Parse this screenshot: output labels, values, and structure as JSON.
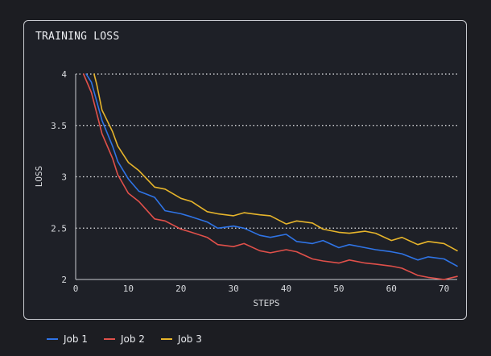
{
  "chart_data": {
    "type": "line",
    "title": "TRAINING LOSS",
    "xlabel": "STEPS",
    "ylabel": "LOSS",
    "xlim": [
      0,
      72.5
    ],
    "ylim": [
      2,
      4
    ],
    "x_ticks": [
      "0",
      "10",
      "20",
      "30",
      "40",
      "50",
      "60",
      "70"
    ],
    "y_ticks": [
      "2",
      "2.5",
      "3",
      "3.5",
      "4"
    ],
    "grid": "horizontal dotted",
    "legend_position": "bottom-left",
    "series": [
      {
        "name": "Job 1",
        "color": "#2f74e6",
        "points": [
          [
            2,
            4.0
          ],
          [
            3,
            3.92
          ],
          [
            5,
            3.55
          ],
          [
            7,
            3.3
          ],
          [
            8,
            3.15
          ],
          [
            10,
            2.98
          ],
          [
            12,
            2.86
          ],
          [
            15,
            2.8
          ],
          [
            17,
            2.67
          ],
          [
            20,
            2.64
          ],
          [
            22,
            2.61
          ],
          [
            25,
            2.56
          ],
          [
            27,
            2.5
          ],
          [
            30,
            2.52
          ],
          [
            32,
            2.5
          ],
          [
            35,
            2.43
          ],
          [
            37,
            2.41
          ],
          [
            40,
            2.44
          ],
          [
            42,
            2.37
          ],
          [
            45,
            2.35
          ],
          [
            47,
            2.38
          ],
          [
            50,
            2.31
          ],
          [
            52,
            2.34
          ],
          [
            55,
            2.31
          ],
          [
            57,
            2.29
          ],
          [
            60,
            2.27
          ],
          [
            62,
            2.25
          ],
          [
            65,
            2.19
          ],
          [
            67,
            2.22
          ],
          [
            70,
            2.2
          ],
          [
            72.5,
            2.13
          ]
        ]
      },
      {
        "name": "Job 2",
        "color": "#e0504a",
        "points": [
          [
            1.5,
            4.0
          ],
          [
            3,
            3.82
          ],
          [
            5,
            3.42
          ],
          [
            7,
            3.18
          ],
          [
            8,
            3.02
          ],
          [
            10,
            2.84
          ],
          [
            12,
            2.76
          ],
          [
            15,
            2.59
          ],
          [
            17,
            2.57
          ],
          [
            20,
            2.49
          ],
          [
            22,
            2.46
          ],
          [
            25,
            2.41
          ],
          [
            27,
            2.34
          ],
          [
            30,
            2.32
          ],
          [
            32,
            2.35
          ],
          [
            35,
            2.28
          ],
          [
            37,
            2.26
          ],
          [
            40,
            2.29
          ],
          [
            42,
            2.27
          ],
          [
            45,
            2.2
          ],
          [
            47,
            2.18
          ],
          [
            50,
            2.16
          ],
          [
            52,
            2.19
          ],
          [
            55,
            2.16
          ],
          [
            57,
            2.15
          ],
          [
            60,
            2.13
          ],
          [
            62,
            2.11
          ],
          [
            65,
            2.04
          ],
          [
            67,
            2.02
          ],
          [
            70,
            2.0
          ],
          [
            72.5,
            2.03
          ]
        ]
      },
      {
        "name": "Job 3",
        "color": "#e6b42b",
        "points": [
          [
            3.5,
            4.0
          ],
          [
            4,
            3.9
          ],
          [
            5,
            3.65
          ],
          [
            7,
            3.44
          ],
          [
            8,
            3.3
          ],
          [
            10,
            3.14
          ],
          [
            12,
            3.06
          ],
          [
            15,
            2.9
          ],
          [
            17,
            2.88
          ],
          [
            20,
            2.79
          ],
          [
            22,
            2.76
          ],
          [
            25,
            2.66
          ],
          [
            27,
            2.64
          ],
          [
            30,
            2.62
          ],
          [
            32,
            2.65
          ],
          [
            35,
            2.63
          ],
          [
            37,
            2.62
          ],
          [
            40,
            2.54
          ],
          [
            42,
            2.57
          ],
          [
            45,
            2.55
          ],
          [
            47,
            2.49
          ],
          [
            50,
            2.46
          ],
          [
            52,
            2.45
          ],
          [
            55,
            2.47
          ],
          [
            57,
            2.45
          ],
          [
            60,
            2.38
          ],
          [
            62,
            2.41
          ],
          [
            65,
            2.34
          ],
          [
            67,
            2.37
          ],
          [
            70,
            2.35
          ],
          [
            72.5,
            2.28
          ]
        ]
      }
    ]
  }
}
